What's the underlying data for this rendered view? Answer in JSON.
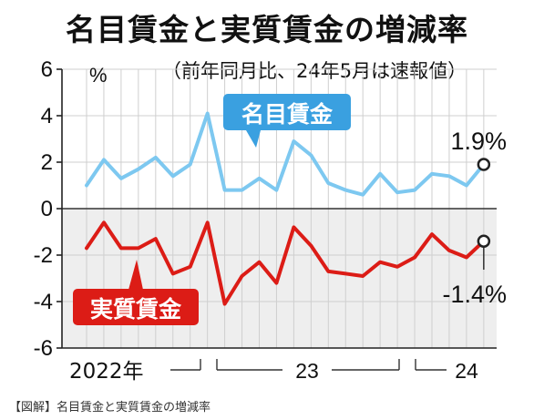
{
  "title": "名目賃金と実質賃金の増減率",
  "subtitle": "（前年同月比、24年5月は速報値）",
  "caption": "【図解】名目賃金と実質賃金の増減率",
  "chart_data": {
    "type": "line",
    "title": "名目賃金と実質賃金の増減率",
    "subtitle": "（前年同月比、24年5月は速報値）",
    "ylabel": "%",
    "ylim": [
      -6,
      6
    ],
    "yticks": [
      6,
      4,
      2,
      0,
      -2,
      -4,
      -6
    ],
    "ytick_labels": [
      "6",
      "4",
      "2",
      "0",
      "-2",
      "-4",
      "-6"
    ],
    "x": [
      "2022-06",
      "2022-07",
      "2022-08",
      "2022-09",
      "2022-10",
      "2022-11",
      "2022-12",
      "2023-01",
      "2023-02",
      "2023-03",
      "2023-04",
      "2023-05",
      "2023-06",
      "2023-07",
      "2023-08",
      "2023-09",
      "2023-10",
      "2023-11",
      "2023-12",
      "2024-01",
      "2024-02",
      "2024-03",
      "2024-04",
      "2024-05"
    ],
    "x_group_labels": [
      "2022年",
      "23",
      "24"
    ],
    "shaded_region": "y<0",
    "colors": {
      "nominal": "#7dc8f0",
      "real": "#dc1c16",
      "shade": "#eeeeee",
      "label_blue": "#3aa0e0"
    },
    "series": [
      {
        "name": "名目賃金",
        "values": [
          1.0,
          2.1,
          1.3,
          1.7,
          2.2,
          1.4,
          1.9,
          4.1,
          0.8,
          0.8,
          1.3,
          0.8,
          2.9,
          2.3,
          1.1,
          0.8,
          0.6,
          1.5,
          0.7,
          0.8,
          1.5,
          1.4,
          1.0,
          1.9
        ]
      },
      {
        "name": "実質賃金",
        "values": [
          -1.7,
          -0.6,
          -1.7,
          -1.7,
          -1.3,
          -2.8,
          -2.5,
          -0.6,
          -4.1,
          -2.9,
          -2.3,
          -3.2,
          -0.8,
          -1.6,
          -2.7,
          -2.8,
          -2.9,
          -2.3,
          -2.5,
          -2.1,
          -1.1,
          -1.8,
          -2.1,
          -1.4
        ]
      }
    ],
    "series_labels": [
      "名目賃金",
      "実質賃金"
    ],
    "annotations": [
      {
        "series": 0,
        "index": 23,
        "text": "1.9%"
      },
      {
        "series": 1,
        "index": 23,
        "text": "-1.4%"
      }
    ]
  }
}
